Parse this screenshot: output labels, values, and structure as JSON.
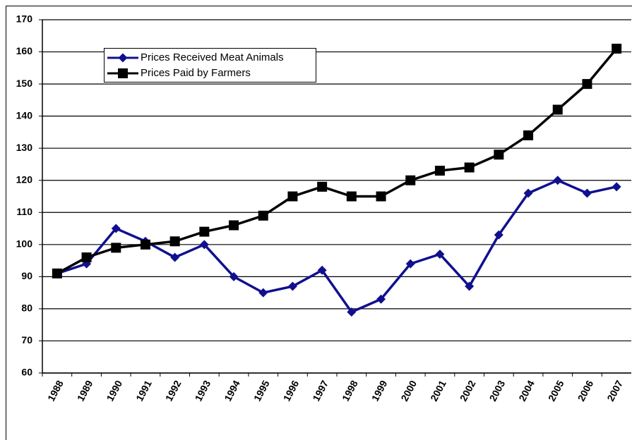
{
  "chart_data": {
    "type": "line",
    "categories": [
      "1988",
      "1989",
      "1990",
      "1991",
      "1992",
      "1993",
      "1994",
      "1995",
      "1996",
      "1997",
      "1998",
      "1999",
      "2000",
      "2001",
      "2002",
      "2003",
      "2004",
      "2005",
      "2006",
      "2007"
    ],
    "series": [
      {
        "name": "Prices Received Meat Animals",
        "color": "#10108f",
        "marker": "diamond",
        "values": [
          91,
          94,
          105,
          101,
          96,
          100,
          90,
          85,
          87,
          92,
          79,
          83,
          94,
          97,
          87,
          103,
          116,
          120,
          116,
          118
        ]
      },
      {
        "name": "Prices Paid by Farmers",
        "color": "#000000",
        "marker": "square",
        "values": [
          91,
          96,
          99,
          100,
          101,
          104,
          106,
          109,
          115,
          118,
          115,
          115,
          120,
          123,
          124,
          128,
          134,
          142,
          150,
          161
        ]
      }
    ],
    "ylim": [
      60,
      170
    ],
    "yticks": [
      60,
      70,
      80,
      90,
      100,
      110,
      120,
      130,
      140,
      150,
      160,
      170
    ],
    "grid": true
  }
}
